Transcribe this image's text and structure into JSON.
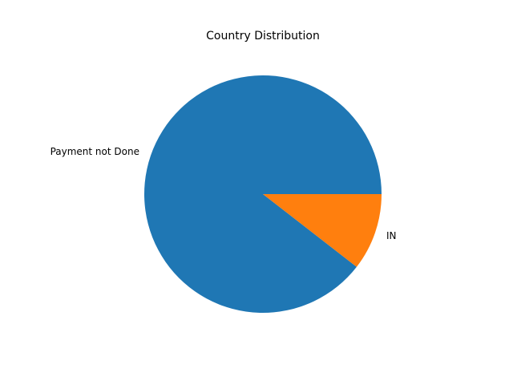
{
  "chart_data": {
    "type": "pie",
    "title": "Country Distribution",
    "labels": [
      "Payment not Done",
      "IN"
    ],
    "values": [
      89.5,
      10.5
    ],
    "colors": [
      "#1f77b4",
      "#ff7f0e"
    ],
    "start_angle_deg": 0,
    "direction": "counterclockwise",
    "legend": "none"
  }
}
